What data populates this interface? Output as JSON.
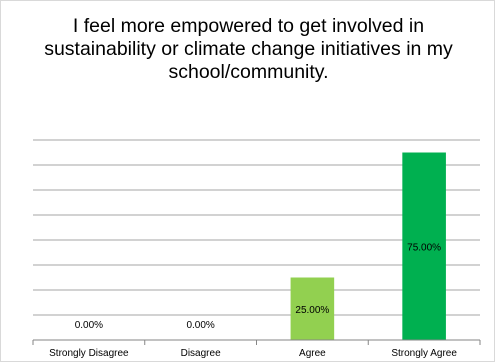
{
  "chart_data": {
    "type": "bar",
    "title": "I feel more empowered to get involved in sustainability or climate change initiatives in my school/community.",
    "categories": [
      "Strongly Disagree",
      "Disagree",
      "Agree",
      "Strongly Agree"
    ],
    "values": [
      0,
      0,
      25,
      75
    ],
    "data_labels": [
      "0.00%",
      "0.00%",
      "25.00%",
      "75.00%"
    ],
    "xlabel": "",
    "ylabel": "",
    "ylim": [
      0,
      80
    ],
    "grid": true,
    "legend": "none",
    "colors": {
      "Strongly Disagree": "#92d050",
      "Disagree": "#92d050",
      "Agree": "#92d050",
      "Strongly Agree": "#00b050"
    },
    "gridline_color": "#868686",
    "axis_color": "#868686"
  }
}
